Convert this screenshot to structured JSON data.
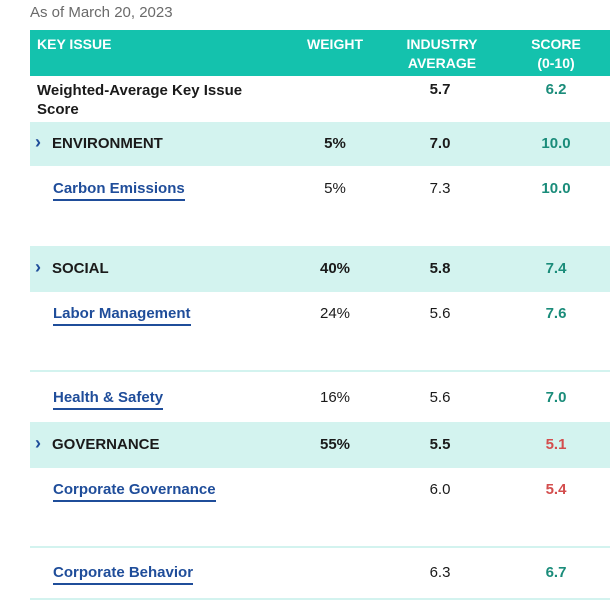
{
  "as_of": "As of March 20, 2023",
  "header": {
    "key_issue": "KEY ISSUE",
    "weight": "WEIGHT",
    "industry_avg_line1": "INDUSTRY",
    "industry_avg_line2": "AVERAGE",
    "score_line1": "SCORE",
    "score_line2": "(0-10)"
  },
  "summary": {
    "label_line1": "Weighted-Average Key Issue",
    "label_line2": "Score",
    "industry_avg": "5.7",
    "score": "6.2"
  },
  "rows": [
    {
      "type": "category",
      "name": "ENVIRONMENT",
      "weight": "5%",
      "avg": "7.0",
      "score": "10.0",
      "score_color": "#1a8c7a"
    },
    {
      "type": "issue",
      "name": "Carbon Emissions",
      "weight": "5%",
      "avg": "7.3",
      "score": "10.0",
      "score_color": "#1a8c7a"
    },
    {
      "type": "category",
      "name": "SOCIAL",
      "weight": "40%",
      "avg": "5.8",
      "score": "7.4",
      "score_color": "#1a8c7a"
    },
    {
      "type": "issue",
      "name": "Labor Management",
      "weight": "24%",
      "avg": "5.6",
      "score": "7.6",
      "score_color": "#1a8c7a"
    },
    {
      "type": "issue",
      "name": "Health & Safety",
      "weight": "16%",
      "avg": "5.6",
      "score": "7.0",
      "score_color": "#1a8c7a"
    },
    {
      "type": "category",
      "name": "GOVERNANCE",
      "weight": "55%",
      "avg": "5.5",
      "score": "5.1",
      "score_color": "#d34d4d"
    },
    {
      "type": "issue",
      "name": "Corporate Governance",
      "weight": "",
      "avg": "6.0",
      "score": "5.4",
      "score_color": "#d34d4d"
    },
    {
      "type": "issue",
      "name": "Corporate Behavior",
      "weight": "",
      "avg": "6.3",
      "score": "6.7",
      "score_color": "#1a8c7a"
    }
  ],
  "colors": {
    "header_bg": "#14c2ad",
    "tint": "#d3f3ef",
    "link": "#1f4d9a",
    "positive": "#1a8c7a",
    "negative": "#d34d4d"
  },
  "icons": {
    "expand": "chevron-right-icon"
  }
}
